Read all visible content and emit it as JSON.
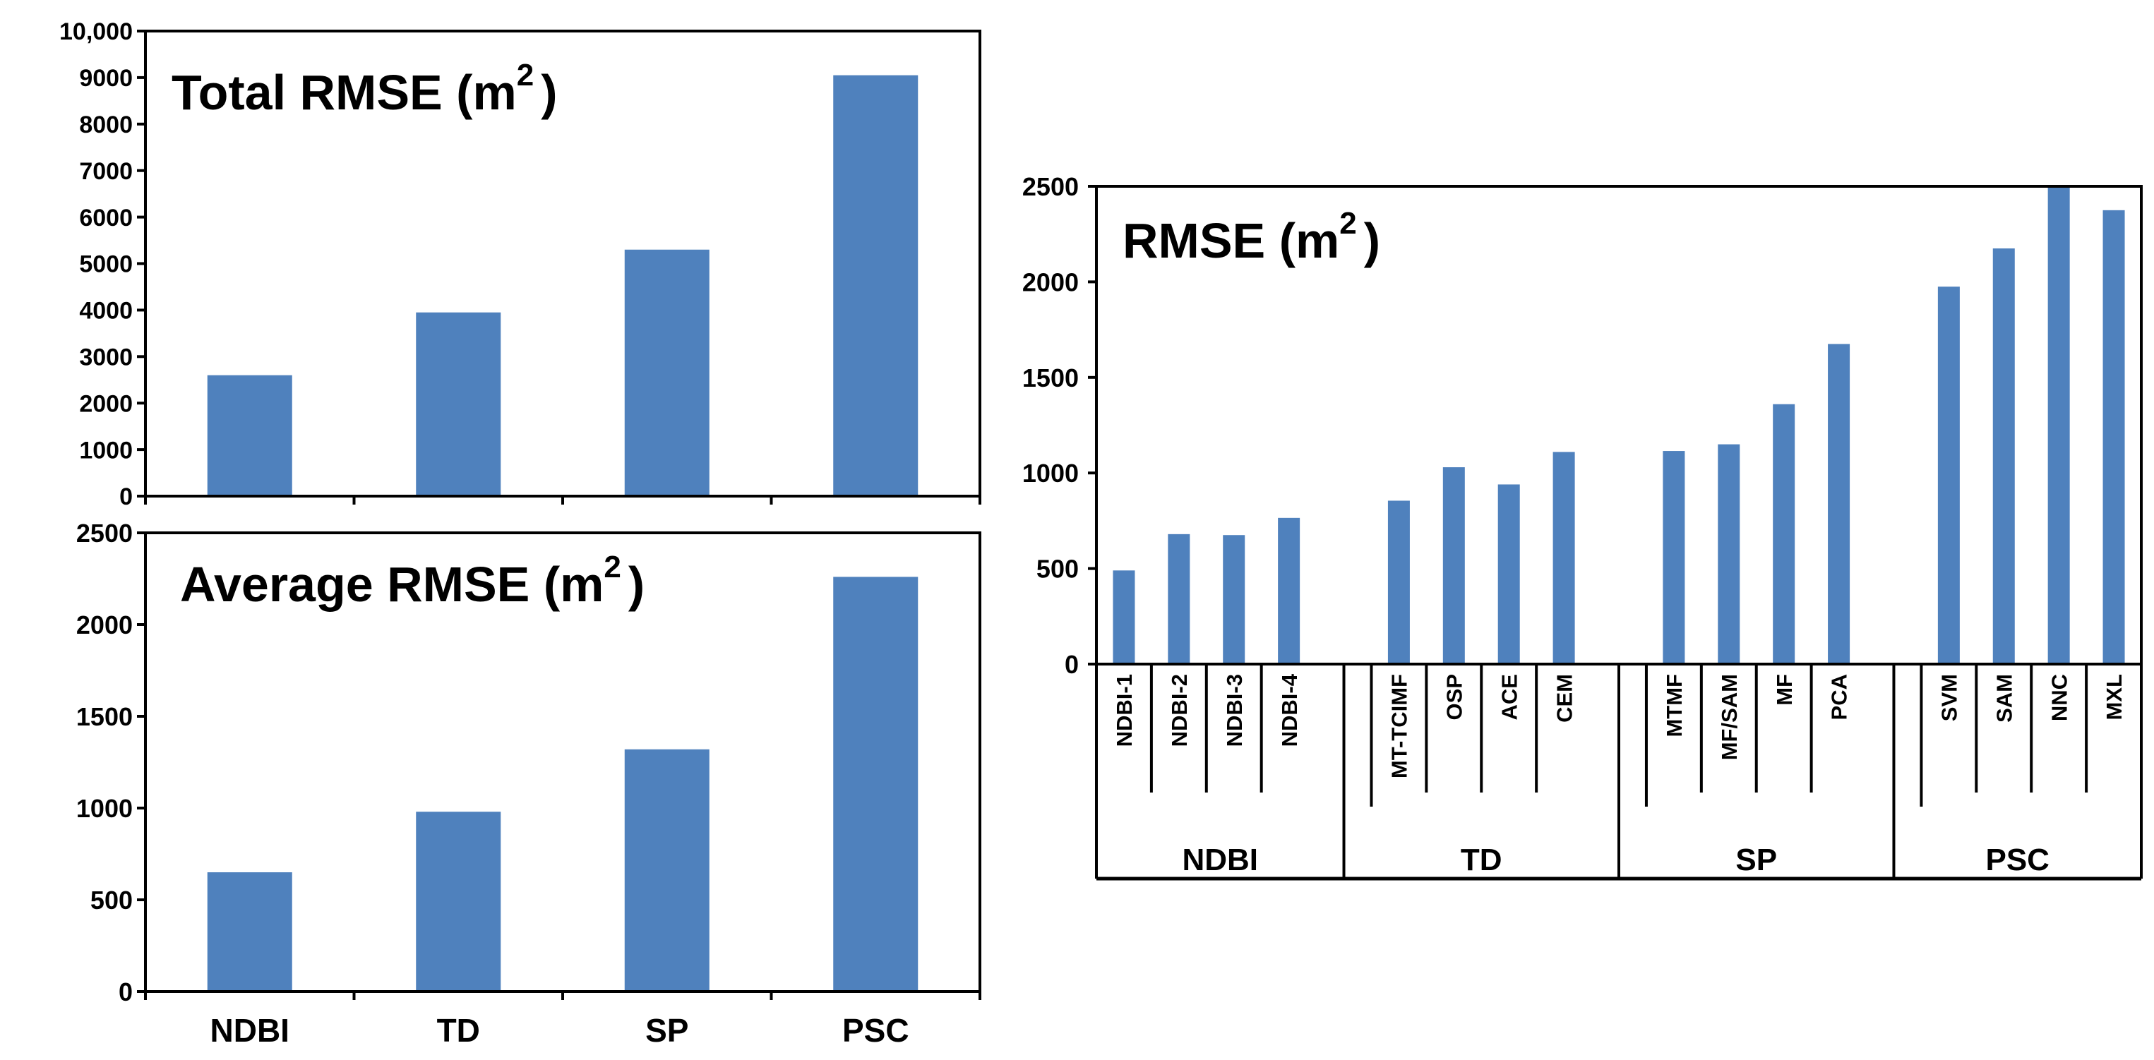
{
  "colors": {
    "bar": "#4f81bd",
    "frame": "#000000",
    "text": "#000000",
    "background": "#ffffff"
  },
  "chart_data": [
    {
      "id": "total",
      "type": "bar",
      "title": "Total RMSE (m",
      "title_sup": "2",
      "title_close": ")",
      "categories": [
        "NDBI",
        "TD",
        "SP",
        "PSC"
      ],
      "values": [
        2600,
        3950,
        5300,
        9050
      ],
      "ylim": [
        0,
        10000
      ],
      "yticks": [
        0,
        1000,
        2000,
        3000,
        4000,
        5000,
        6000,
        7000,
        8000,
        9000,
        10000
      ],
      "ytick_labels": [
        "0",
        "1000",
        "2000",
        "3000",
        "4000",
        "5000",
        "6000",
        "7000",
        "8000",
        "9000",
        "10,000"
      ],
      "xlabel": "",
      "ylabel": ""
    },
    {
      "id": "average",
      "type": "bar",
      "title": "Average RMSE (m",
      "title_sup": "2",
      "title_close": ")",
      "categories": [
        "NDBI",
        "TD",
        "SP",
        "PSC"
      ],
      "values": [
        650,
        980,
        1320,
        2260
      ],
      "ylim": [
        0,
        2500
      ],
      "yticks": [
        0,
        500,
        1000,
        1500,
        2000,
        2500
      ],
      "ytick_labels": [
        "0",
        "500",
        "1000",
        "1500",
        "2000",
        "2500"
      ],
      "xlabel": "",
      "ylabel": ""
    },
    {
      "id": "detail",
      "type": "bar",
      "title": "RMSE (m",
      "title_sup": "2",
      "title_close": ")",
      "ylim": [
        0,
        2500
      ],
      "yticks": [
        0,
        500,
        1000,
        1500,
        2000,
        2500
      ],
      "ytick_labels": [
        "0",
        "500",
        "1000",
        "1500",
        "2000",
        "2500"
      ],
      "groups": [
        {
          "name": "NDBI",
          "methods": [
            "NDBI-1",
            "NDBI-2",
            "NDBI-3",
            "NDBI-4"
          ],
          "values": [
            490,
            680,
            675,
            765
          ]
        },
        {
          "name": "TD",
          "methods": [
            "MT-TCIMF",
            "OSP",
            "ACE",
            "CEM"
          ],
          "values": [
            855,
            1030,
            940,
            1110
          ]
        },
        {
          "name": "SP",
          "methods": [
            "MTMF",
            "MF/SAM",
            "MF",
            "PCA"
          ],
          "values": [
            1115,
            1150,
            1360,
            1675
          ]
        },
        {
          "name": "PSC",
          "methods": [
            "SVM",
            "SAM",
            "NNC",
            "MXL"
          ],
          "values": [
            1975,
            2175,
            2500,
            2375
          ]
        }
      ],
      "xlabel": "",
      "ylabel": ""
    }
  ]
}
